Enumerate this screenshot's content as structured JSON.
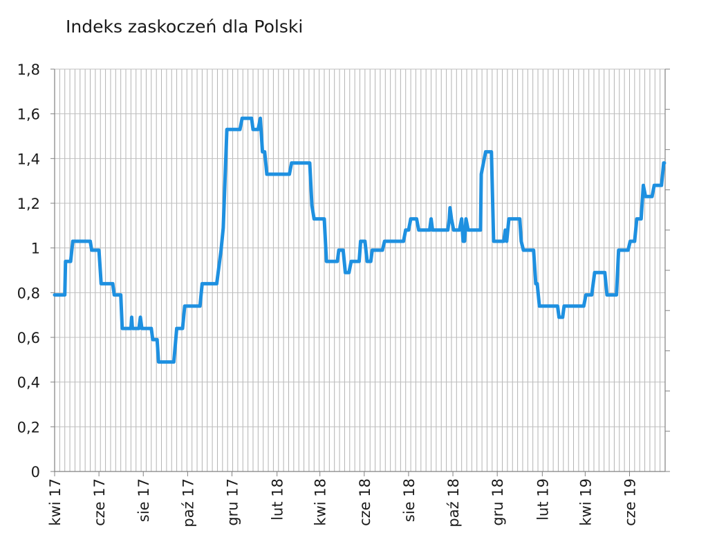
{
  "chart_data": {
    "type": "line",
    "title": "Indeks zaskoczeń dla Polski",
    "xlabel": "",
    "ylabel": "",
    "ylim": [
      0,
      1.8
    ],
    "y_ticks": [
      "0",
      "0,2",
      "0,4",
      "0,6",
      "0,8",
      "1",
      "1,2",
      "1,4",
      "1,6",
      "1,8"
    ],
    "y_tick_values": [
      0,
      0.2,
      0.4,
      0.6,
      0.8,
      1.0,
      1.2,
      1.4,
      1.6,
      1.8
    ],
    "x_range": [
      "2017-04-01",
      "2019-07-20"
    ],
    "x_ticks": [
      {
        "label": "kwi 17",
        "date": "2017-04-01"
      },
      {
        "label": "cze 17",
        "date": "2017-06-01"
      },
      {
        "label": "sie 17",
        "date": "2017-08-01"
      },
      {
        "label": "paź 17",
        "date": "2017-10-01"
      },
      {
        "label": "gru 17",
        "date": "2017-12-01"
      },
      {
        "label": "lut 18",
        "date": "2018-02-01"
      },
      {
        "label": "kwi 18",
        "date": "2018-04-01"
      },
      {
        "label": "cze 18",
        "date": "2018-06-01"
      },
      {
        "label": "sie 18",
        "date": "2018-08-01"
      },
      {
        "label": "paź 18",
        "date": "2018-10-01"
      },
      {
        "label": "gru 18",
        "date": "2018-12-01"
      },
      {
        "label": "lut 19",
        "date": "2019-02-01"
      },
      {
        "label": "kwi 19",
        "date": "2019-04-01"
      },
      {
        "label": "cze 19",
        "date": "2019-06-01"
      }
    ],
    "grid": "vertical",
    "series": [
      {
        "name": "",
        "color": "#1e90e0",
        "points": [
          [
            "2017-04-01",
            0.79
          ],
          [
            "2017-04-15",
            0.79
          ],
          [
            "2017-04-16",
            0.94
          ],
          [
            "2017-04-23",
            0.94
          ],
          [
            "2017-04-26",
            1.03
          ],
          [
            "2017-05-20",
            1.03
          ],
          [
            "2017-05-22",
            0.99
          ],
          [
            "2017-06-01",
            0.99
          ],
          [
            "2017-06-04",
            0.84
          ],
          [
            "2017-06-20",
            0.84
          ],
          [
            "2017-06-22",
            0.79
          ],
          [
            "2017-07-01",
            0.79
          ],
          [
            "2017-07-03",
            0.64
          ],
          [
            "2017-07-15",
            0.64
          ],
          [
            "2017-07-16",
            0.69
          ],
          [
            "2017-07-17",
            0.64
          ],
          [
            "2017-07-26",
            0.64
          ],
          [
            "2017-07-28",
            0.69
          ],
          [
            "2017-07-30",
            0.64
          ],
          [
            "2017-08-12",
            0.64
          ],
          [
            "2017-08-14",
            0.59
          ],
          [
            "2017-08-20",
            0.59
          ],
          [
            "2017-08-22",
            0.49
          ],
          [
            "2017-09-12",
            0.49
          ],
          [
            "2017-09-16",
            0.64
          ],
          [
            "2017-09-24",
            0.64
          ],
          [
            "2017-09-27",
            0.74
          ],
          [
            "2017-10-18",
            0.74
          ],
          [
            "2017-10-21",
            0.84
          ],
          [
            "2017-11-10",
            0.84
          ],
          [
            "2017-11-12",
            0.89
          ],
          [
            "2017-11-14",
            0.94
          ],
          [
            "2017-11-16",
            0.99
          ],
          [
            "2017-11-19",
            1.09
          ],
          [
            "2017-11-24",
            1.53
          ],
          [
            "2017-12-12",
            1.53
          ],
          [
            "2017-12-15",
            1.58
          ],
          [
            "2017-12-28",
            1.58
          ],
          [
            "2017-12-30",
            1.53
          ],
          [
            "2018-01-06",
            1.53
          ],
          [
            "2018-01-09",
            1.58
          ],
          [
            "2018-01-12",
            1.43
          ],
          [
            "2018-01-15",
            1.43
          ],
          [
            "2018-01-18",
            1.33
          ],
          [
            "2018-02-18",
            1.33
          ],
          [
            "2018-02-21",
            1.38
          ],
          [
            "2018-03-18",
            1.38
          ],
          [
            "2018-03-21",
            1.19
          ],
          [
            "2018-03-24",
            1.13
          ],
          [
            "2018-04-07",
            1.13
          ],
          [
            "2018-04-10",
            0.94
          ],
          [
            "2018-04-25",
            0.94
          ],
          [
            "2018-04-27",
            0.99
          ],
          [
            "2018-05-03",
            0.99
          ],
          [
            "2018-05-06",
            0.89
          ],
          [
            "2018-05-11",
            0.89
          ],
          [
            "2018-05-14",
            0.94
          ],
          [
            "2018-05-25",
            0.94
          ],
          [
            "2018-05-27",
            1.03
          ],
          [
            "2018-06-02",
            1.03
          ],
          [
            "2018-06-05",
            0.94
          ],
          [
            "2018-06-10",
            0.94
          ],
          [
            "2018-06-12",
            0.99
          ],
          [
            "2018-06-26",
            0.99
          ],
          [
            "2018-06-29",
            1.03
          ],
          [
            "2018-07-25",
            1.03
          ],
          [
            "2018-07-28",
            1.08
          ],
          [
            "2018-08-01",
            1.08
          ],
          [
            "2018-08-04",
            1.13
          ],
          [
            "2018-08-12",
            1.13
          ],
          [
            "2018-08-15",
            1.08
          ],
          [
            "2018-08-30",
            1.08
          ],
          [
            "2018-09-01",
            1.13
          ],
          [
            "2018-09-03",
            1.08
          ],
          [
            "2018-09-24",
            1.08
          ],
          [
            "2018-09-26",
            1.13
          ],
          [
            "2018-09-27",
            1.18
          ],
          [
            "2018-09-29",
            1.13
          ],
          [
            "2018-10-02",
            1.08
          ],
          [
            "2018-10-10",
            1.08
          ],
          [
            "2018-10-13",
            1.13
          ],
          [
            "2018-10-15",
            1.03
          ],
          [
            "2018-10-17",
            1.03
          ],
          [
            "2018-10-19",
            1.13
          ],
          [
            "2018-10-22",
            1.08
          ],
          [
            "2018-11-08",
            1.08
          ],
          [
            "2018-11-09",
            1.33
          ],
          [
            "2018-11-12",
            1.38
          ],
          [
            "2018-11-15",
            1.43
          ],
          [
            "2018-11-23",
            1.43
          ],
          [
            "2018-11-26",
            1.03
          ],
          [
            "2018-12-10",
            1.03
          ],
          [
            "2018-12-12",
            1.08
          ],
          [
            "2018-12-14",
            1.03
          ],
          [
            "2018-12-17",
            1.13
          ],
          [
            "2019-01-01",
            1.13
          ],
          [
            "2019-01-03",
            1.03
          ],
          [
            "2019-01-06",
            0.99
          ],
          [
            "2019-01-20",
            0.99
          ],
          [
            "2019-01-23",
            0.84
          ],
          [
            "2019-01-25",
            0.84
          ],
          [
            "2019-01-28",
            0.74
          ],
          [
            "2019-02-22",
            0.74
          ],
          [
            "2019-02-24",
            0.69
          ],
          [
            "2019-03-01",
            0.69
          ],
          [
            "2019-03-03",
            0.74
          ],
          [
            "2019-03-30",
            0.74
          ],
          [
            "2019-04-02",
            0.79
          ],
          [
            "2019-04-10",
            0.79
          ],
          [
            "2019-04-14",
            0.89
          ],
          [
            "2019-04-28",
            0.89
          ],
          [
            "2019-05-01",
            0.79
          ],
          [
            "2019-05-14",
            0.79
          ],
          [
            "2019-05-17",
            0.99
          ],
          [
            "2019-05-30",
            0.99
          ],
          [
            "2019-06-02",
            1.03
          ],
          [
            "2019-06-08",
            1.03
          ],
          [
            "2019-06-11",
            1.13
          ],
          [
            "2019-06-17",
            1.13
          ],
          [
            "2019-06-20",
            1.28
          ],
          [
            "2019-06-23",
            1.23
          ],
          [
            "2019-07-02",
            1.23
          ],
          [
            "2019-07-05",
            1.28
          ],
          [
            "2019-07-15",
            1.28
          ],
          [
            "2019-07-18",
            1.38
          ],
          [
            "2019-07-19",
            1.38
          ]
        ]
      }
    ]
  }
}
